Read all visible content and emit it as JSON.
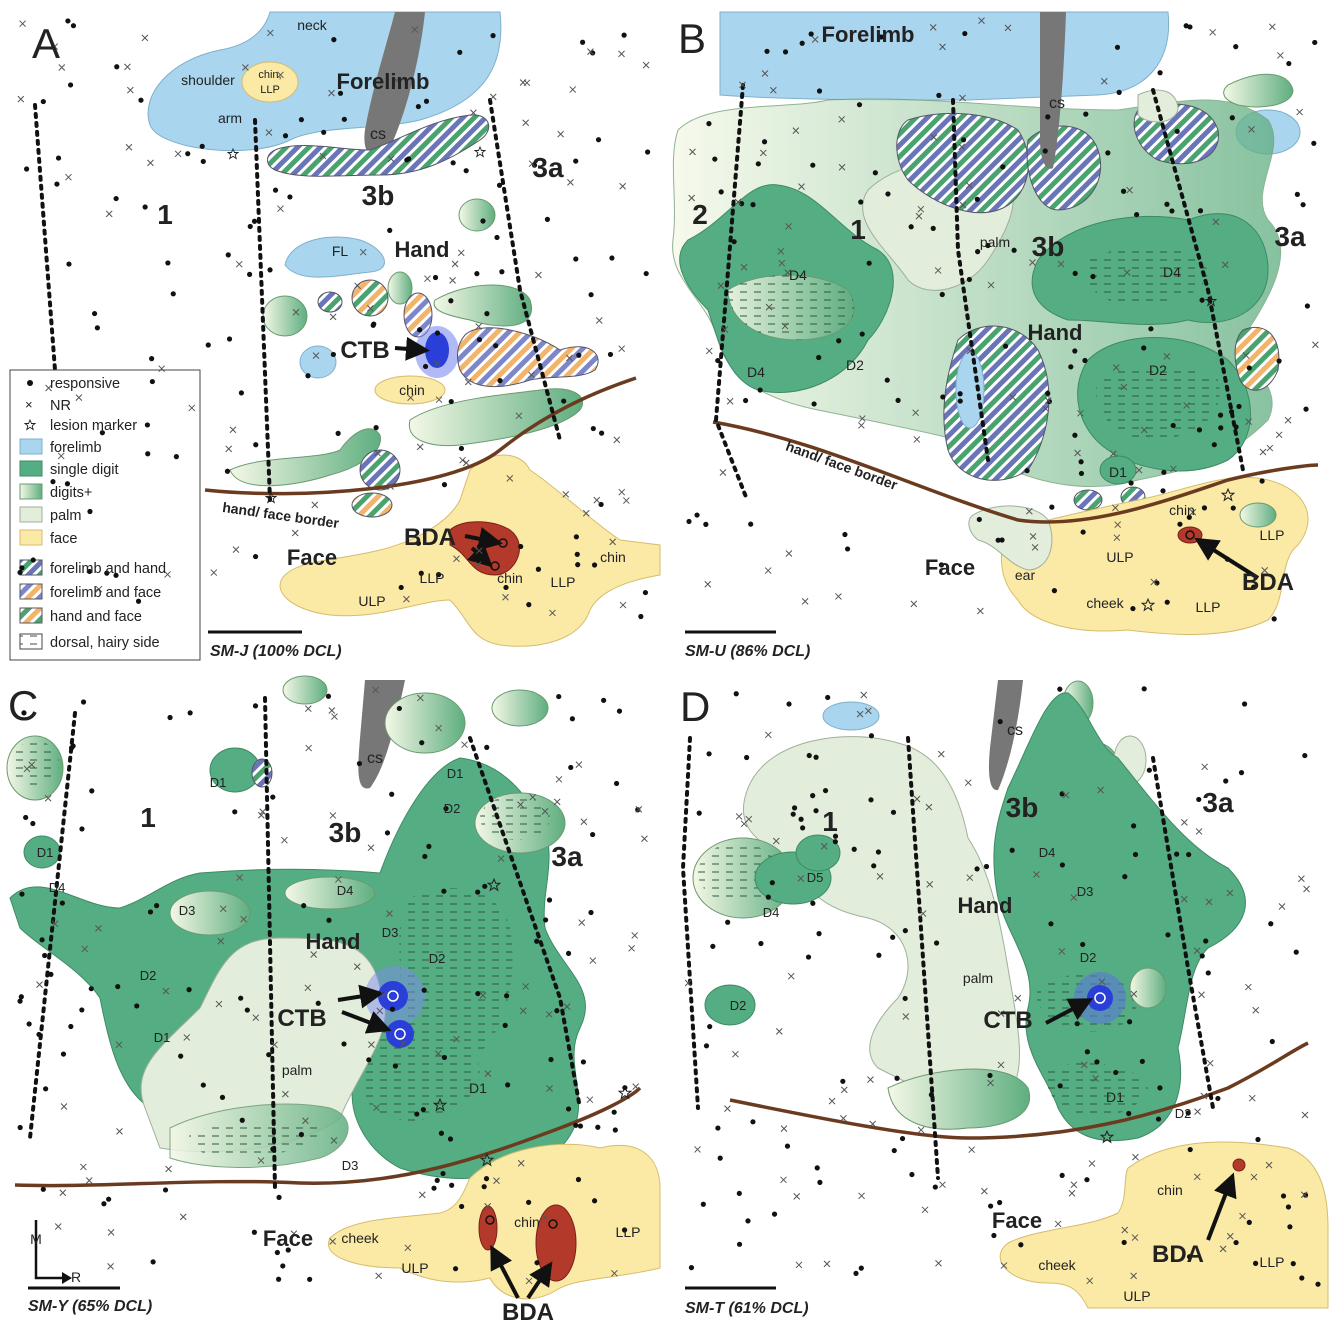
{
  "legend": {
    "items": [
      "responsive",
      "NR",
      "lesion marker",
      "forelimb",
      "single digit",
      "digits+",
      "palm",
      "face",
      "forelimb and hand",
      "forelimb and face",
      "hand and face",
      "dorsal, hairy side"
    ]
  },
  "panels": [
    {
      "letter": "A",
      "scale": "SM-J (100% DCL)",
      "labels": [
        "neck",
        "shoulder",
        "chin,",
        "LLP",
        "Forelimb",
        "arm",
        "cs",
        "3b",
        "3a",
        "1",
        "FL",
        "Hand",
        "CTB",
        "chin",
        "hand/ face border",
        "BDA",
        "Face",
        "LLP",
        "chin",
        "LLP",
        "chin",
        "ULP"
      ]
    },
    {
      "letter": "B",
      "scale": "SM-U (86% DCL)",
      "labels": [
        "Forelimb",
        "cs",
        "2",
        "1",
        "palm",
        "3b",
        "3a",
        "D4",
        "D4",
        "Hand",
        "D4",
        "D2",
        "D2",
        "D1",
        "hand/ face border",
        "chin",
        "LLP",
        "ULP",
        "Face",
        "ear",
        "cheek",
        "LLP",
        "BDA"
      ]
    },
    {
      "letter": "C",
      "scale": "SM-Y (65% DCL)",
      "labels": [
        "cs",
        "1",
        "3b",
        "3a",
        "D1",
        "D1",
        "D2",
        "D1",
        "D4",
        "D4",
        "D3",
        "Hand",
        "D3",
        "D2",
        "D2",
        "CTB",
        "D1",
        "palm",
        "D1",
        "D3",
        "Face",
        "cheek",
        "ULP",
        "chin",
        "LLP",
        "BDA",
        "M",
        "R"
      ]
    },
    {
      "letter": "D",
      "scale": "SM-T (61% DCL)",
      "labels": [
        "cs",
        "1",
        "3b",
        "3a",
        "D4",
        "D3",
        "D5",
        "D4",
        "Hand",
        "palm",
        "D2",
        "D2",
        "CTB",
        "D1",
        "D2",
        "chin",
        "Face",
        "cheek",
        "BDA",
        "ULP",
        "LLP"
      ]
    }
  ]
}
